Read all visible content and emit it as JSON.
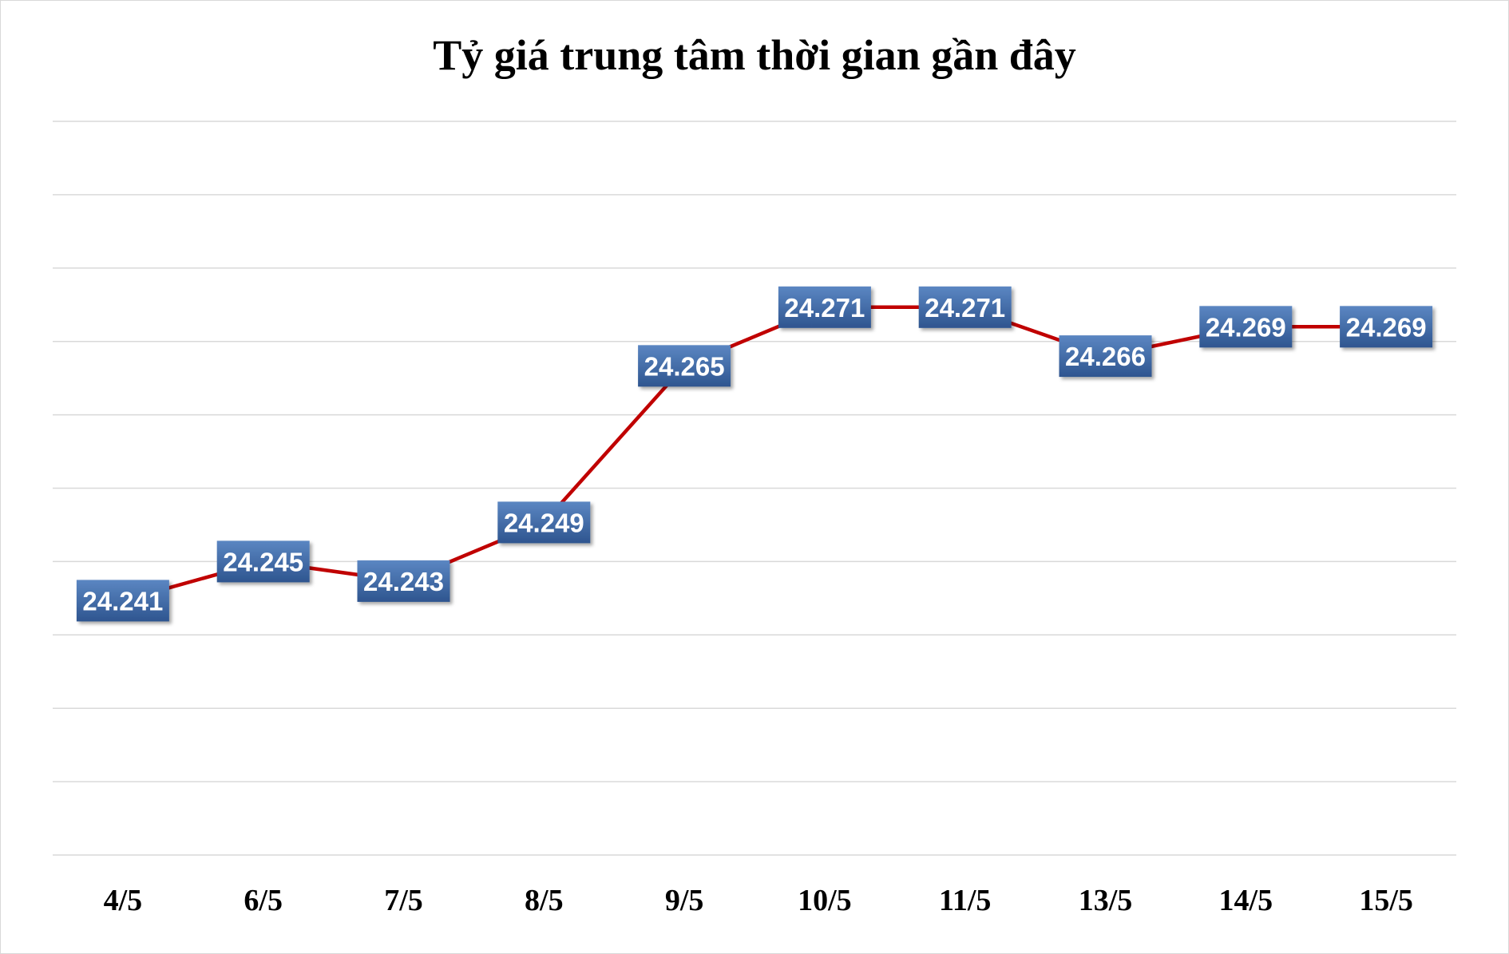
{
  "chart_data": {
    "type": "line",
    "title": "Tỷ giá trung tâm thời gian gần đây",
    "categories": [
      "4/5",
      "6/5",
      "7/5",
      "8/5",
      "9/5",
      "10/5",
      "11/5",
      "13/5",
      "14/5",
      "15/5"
    ],
    "series": [
      {
        "values": [
          24241,
          24245,
          24243,
          24249,
          24265,
          24271,
          24271,
          24266,
          24269,
          24269
        ],
        "labels": [
          "24.241",
          "24.245",
          "24.243",
          "24.249",
          "24.265",
          "24.271",
          "24.271",
          "24.266",
          "24.269",
          "24.269"
        ]
      }
    ],
    "ylim": [
      24215,
      24290
    ],
    "grid_step": 7.5,
    "grid": true,
    "legend": "none",
    "colors": {
      "line": "#c00000",
      "label_bg_top": "#5b86c2",
      "label_bg_bottom": "#2e558f",
      "gridline": "#d9d9d9"
    }
  }
}
